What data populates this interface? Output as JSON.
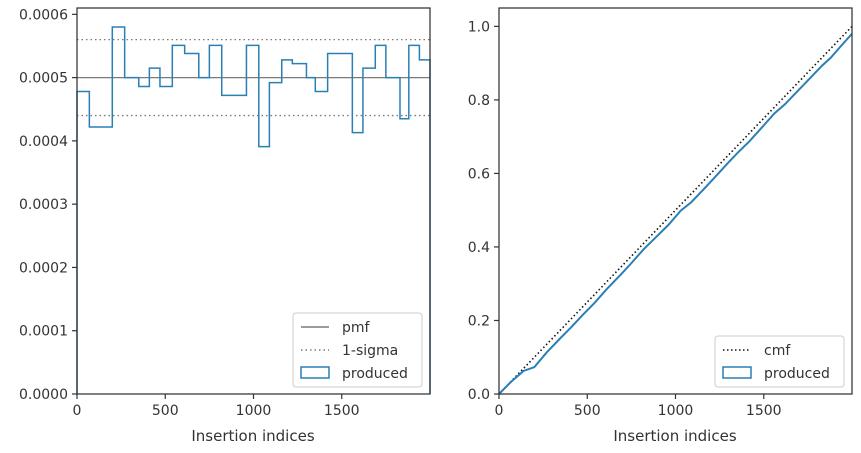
{
  "colors": {
    "produced": "#2a7fb5",
    "pmf": "#7a7a7a",
    "sigma": "#7a7a7a",
    "cmf": "#111111",
    "axes": "#333333",
    "legend_border": "#cccccc"
  },
  "chart_data": [
    {
      "type": "line",
      "xlabel": "Insertion indices",
      "ylabel": "",
      "xlim": [
        0,
        2000
      ],
      "ylim": [
        0,
        0.00061
      ],
      "x_ticks": [
        0,
        500,
        1000,
        1500
      ],
      "x_tick_labels": [
        "0",
        "500",
        "1000",
        "1500"
      ],
      "y_ticks": [
        0,
        0.0001,
        0.0002,
        0.0003,
        0.0004,
        0.0005,
        0.0006
      ],
      "y_tick_labels": [
        "0.0000",
        "0.0001",
        "0.0002",
        "0.0003",
        "0.0004",
        "0.0005",
        "0.0006"
      ],
      "grid": false,
      "legend_position": "lower right",
      "legend": [
        "pmf",
        "1-sigma",
        "produced"
      ],
      "hlines": [
        {
          "name": "pmf",
          "y": 0.0005,
          "style": "solid"
        },
        {
          "name": "1-sigma",
          "y": 0.00056,
          "style": "dotted"
        },
        {
          "name": "1-sigma",
          "y": 0.00044,
          "style": "dotted"
        }
      ],
      "series": [
        {
          "name": "produced",
          "style": "step-histogram",
          "bin_edges": [
            0,
            70,
            140,
            200,
            270,
            350,
            410,
            470,
            540,
            610,
            690,
            750,
            820,
            890,
            960,
            1030,
            1090,
            1160,
            1220,
            1300,
            1350,
            1420,
            1480,
            1560,
            1620,
            1690,
            1750,
            1830,
            1880,
            1940,
            2000
          ],
          "values": [
            0.000478,
            0.000422,
            0.000422,
            0.00058,
            0.0005,
            0.000486,
            0.000515,
            0.000486,
            0.000551,
            0.000538,
            0.0005,
            0.000551,
            0.000472,
            0.000472,
            0.000551,
            0.000391,
            0.000492,
            0.000528,
            0.000522,
            0.0005,
            0.000478,
            0.000538,
            0.000538,
            0.000413,
            0.000515,
            0.000551,
            0.0005,
            0.000435,
            0.000551,
            0.000528
          ]
        }
      ]
    },
    {
      "type": "line",
      "xlabel": "Insertion indices",
      "ylabel": "",
      "xlim": [
        0,
        2000
      ],
      "ylim": [
        0,
        1.05
      ],
      "x_ticks": [
        0,
        500,
        1000,
        1500
      ],
      "x_tick_labels": [
        "0",
        "500",
        "1000",
        "1500"
      ],
      "y_ticks": [
        0,
        0.2,
        0.4,
        0.6,
        0.8,
        1.0
      ],
      "y_tick_labels": [
        "0.0",
        "0.2",
        "0.4",
        "0.6",
        "0.8",
        "1.0"
      ],
      "grid": false,
      "legend_position": "lower right",
      "legend": [
        "cmf",
        "produced"
      ],
      "series": [
        {
          "name": "cmf",
          "style": "dotted",
          "x": [
            0,
            2000
          ],
          "values": [
            0,
            1.0
          ]
        },
        {
          "name": "produced",
          "style": "solid",
          "x": [
            0,
            70,
            140,
            200,
            270,
            350,
            410,
            470,
            540,
            610,
            690,
            750,
            820,
            890,
            960,
            1030,
            1090,
            1160,
            1220,
            1300,
            1350,
            1420,
            1480,
            1560,
            1620,
            1690,
            1750,
            1830,
            1880,
            1940,
            2000
          ],
          "values": [
            0,
            0.034,
            0.063,
            0.073,
            0.113,
            0.153,
            0.182,
            0.213,
            0.247,
            0.285,
            0.325,
            0.356,
            0.394,
            0.427,
            0.46,
            0.499,
            0.522,
            0.557,
            0.588,
            0.63,
            0.655,
            0.688,
            0.72,
            0.763,
            0.788,
            0.823,
            0.853,
            0.893,
            0.915,
            0.948,
            0.98
          ]
        }
      ]
    }
  ]
}
